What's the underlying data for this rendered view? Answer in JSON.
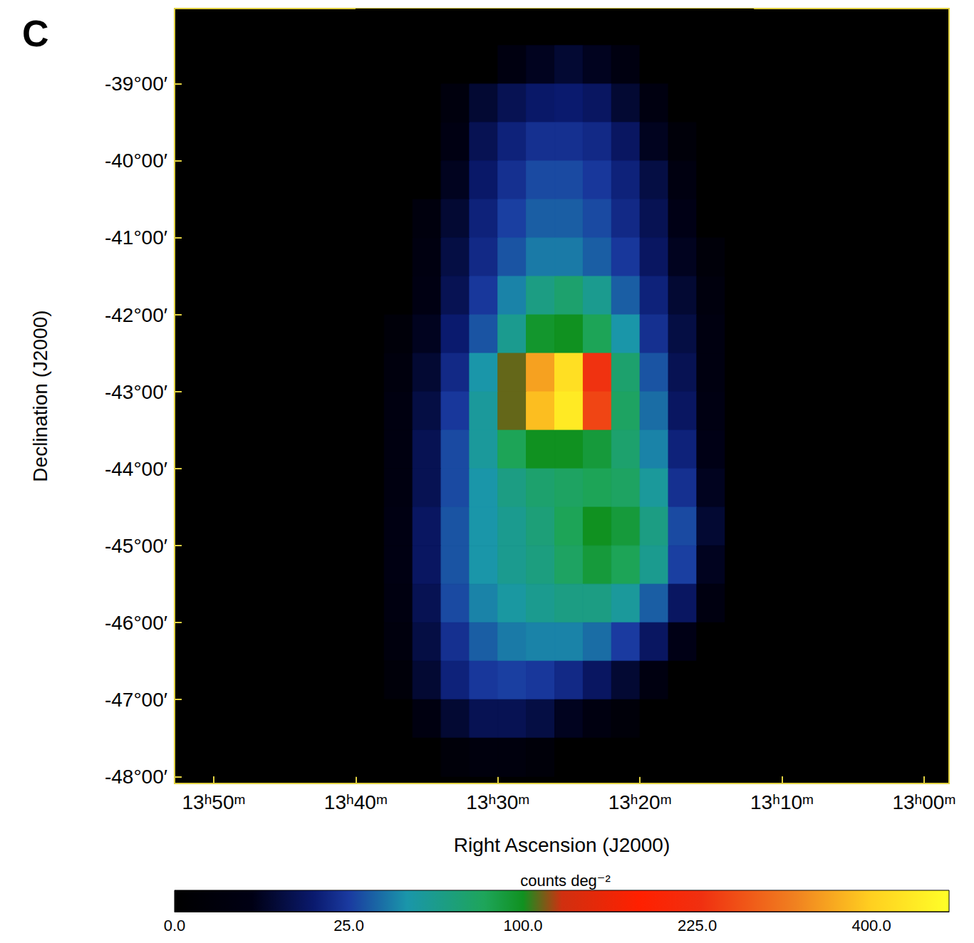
{
  "chart_data": {
    "type": "heatmap",
    "panel_label": "C",
    "x_label": "Right Ascension (J2000)",
    "y_label": "Declination (J2000)",
    "grid": false,
    "xlim": [
      832.76,
      778.24
    ],
    "xticks": [
      {
        "value": 830,
        "label": "13ʰ50ᵐ"
      },
      {
        "value": 820,
        "label": "13ʰ40ᵐ"
      },
      {
        "value": 810,
        "label": "13ʰ30ᵐ"
      },
      {
        "value": 800,
        "label": "13ʰ20ᵐ"
      },
      {
        "value": 790,
        "label": "13ʰ10ᵐ"
      },
      {
        "value": 780,
        "label": "13ʰ00ᵐ"
      }
    ],
    "ylim": [
      -48.09,
      -38.02
    ],
    "yticks": [
      {
        "value": -39,
        "label": "-39°00′"
      },
      {
        "value": -40,
        "label": "-40°00′"
      },
      {
        "value": -41,
        "label": "-41°00′"
      },
      {
        "value": -42,
        "label": "-42°00′"
      },
      {
        "value": -43,
        "label": "-43°00′"
      },
      {
        "value": -44,
        "label": "-44°00′"
      },
      {
        "value": -45,
        "label": "-45°00′"
      },
      {
        "value": -46,
        "label": "-46°00′"
      },
      {
        "value": -47,
        "label": "-47°00′"
      },
      {
        "value": -48,
        "label": "-48°00′"
      }
    ],
    "x": [
      819,
      817,
      815,
      813,
      811,
      809,
      807,
      805,
      803,
      801,
      799,
      797,
      795,
      793
    ],
    "y": [
      -38.25,
      -38.75,
      -39.25,
      -39.75,
      -40.25,
      -40.75,
      -41.25,
      -41.75,
      -42.25,
      -42.75,
      -43.25,
      -43.75,
      -44.25,
      -44.75,
      -45.25,
      -45.75,
      -46.25,
      -46.75,
      -47.25,
      -47.75
    ],
    "cells": [
      [
        0,
        0,
        0,
        0,
        0,
        0,
        0,
        0,
        0,
        0,
        0,
        0,
        0,
        0
      ],
      [
        0,
        0,
        0,
        0,
        0,
        3,
        6,
        8,
        6,
        3,
        0,
        0,
        0,
        0
      ],
      [
        0,
        0,
        0,
        2,
        8,
        12,
        15,
        16,
        14,
        8,
        3,
        0,
        0,
        0
      ],
      [
        0,
        0,
        0,
        4,
        12,
        18,
        22,
        22,
        20,
        14,
        6,
        1,
        0,
        0
      ],
      [
        0,
        0,
        0,
        6,
        15,
        22,
        28,
        28,
        24,
        18,
        10,
        3,
        0,
        0
      ],
      [
        0,
        0,
        2,
        8,
        18,
        26,
        32,
        32,
        28,
        20,
        12,
        5,
        0,
        0
      ],
      [
        0,
        0,
        3,
        10,
        20,
        30,
        38,
        38,
        32,
        24,
        14,
        6,
        1,
        0
      ],
      [
        0,
        0,
        4,
        12,
        24,
        40,
        60,
        70,
        55,
        32,
        18,
        8,
        2,
        0
      ],
      [
        0,
        1,
        6,
        16,
        30,
        55,
        95,
        100,
        80,
        45,
        22,
        10,
        3,
        0
      ],
      [
        0,
        2,
        8,
        20,
        45,
        110,
        350,
        430,
        230,
        70,
        30,
        12,
        3,
        0
      ],
      [
        0,
        3,
        10,
        24,
        50,
        110,
        380,
        450,
        250,
        75,
        35,
        14,
        4,
        0
      ],
      [
        0,
        3,
        12,
        28,
        50,
        80,
        100,
        100,
        90,
        70,
        40,
        18,
        5,
        0
      ],
      [
        0,
        3,
        12,
        28,
        45,
        60,
        70,
        75,
        80,
        75,
        50,
        22,
        6,
        0
      ],
      [
        0,
        4,
        14,
        30,
        45,
        55,
        65,
        80,
        100,
        90,
        60,
        28,
        8,
        0
      ],
      [
        0,
        4,
        14,
        30,
        45,
        55,
        62,
        75,
        90,
        80,
        55,
        26,
        6,
        0
      ],
      [
        0,
        3,
        12,
        28,
        40,
        48,
        55,
        60,
        60,
        50,
        32,
        14,
        3,
        0
      ],
      [
        0,
        2,
        10,
        22,
        32,
        38,
        40,
        40,
        35,
        25,
        14,
        5,
        0,
        0
      ],
      [
        0,
        1,
        8,
        18,
        24,
        26,
        24,
        20,
        14,
        8,
        3,
        0,
        0,
        0
      ],
      [
        0,
        0,
        3,
        8,
        12,
        12,
        10,
        6,
        3,
        1,
        0,
        0,
        0,
        0
      ],
      [
        0,
        0,
        0,
        1,
        2,
        2,
        1,
        0,
        0,
        0,
        0,
        0,
        0,
        0
      ]
    ],
    "colorbar_label": "counts deg⁻²",
    "colorbar_range": [
      0,
      494
    ],
    "colorbar_ticks": [
      {
        "value": 0,
        "label": "0.0"
      },
      {
        "value": 25,
        "label": "25.0"
      },
      {
        "value": 100,
        "label": "100.0"
      },
      {
        "value": 225,
        "label": "225.0"
      },
      {
        "value": 400,
        "label": "400.0"
      }
    ]
  }
}
